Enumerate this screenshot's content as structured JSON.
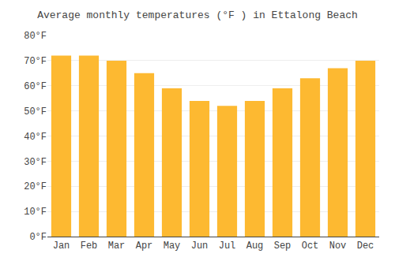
{
  "chart_data": {
    "type": "bar",
    "title": "Average monthly temperatures (°F ) in Ettalong Beach",
    "categories": [
      "Jan",
      "Feb",
      "Mar",
      "Apr",
      "May",
      "Jun",
      "Jul",
      "Aug",
      "Sep",
      "Oct",
      "Nov",
      "Dec"
    ],
    "values": [
      72,
      72,
      70,
      65,
      59,
      54,
      52,
      54,
      59,
      63,
      67,
      70
    ],
    "color": "#FDB931",
    "ylim": [
      0,
      80
    ],
    "yticks": [
      {
        "value": 0,
        "label": "0°F"
      },
      {
        "value": 10,
        "label": "10°F"
      },
      {
        "value": 20,
        "label": "20°F"
      },
      {
        "value": 30,
        "label": "30°F"
      },
      {
        "value": 40,
        "label": "40°F"
      },
      {
        "value": 50,
        "label": "50°F"
      },
      {
        "value": 60,
        "label": "60°F"
      },
      {
        "value": 70,
        "label": "70°F"
      },
      {
        "value": 80,
        "label": "80°F"
      }
    ],
    "grid": true
  }
}
